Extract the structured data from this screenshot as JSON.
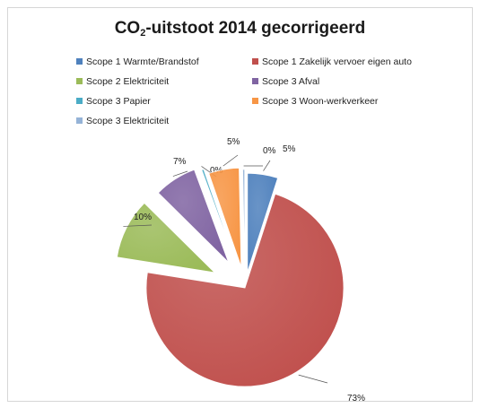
{
  "chart_data": {
    "type": "pie",
    "title_main": "CO",
    "title_sub": "2",
    "title_rest": "-uitstoot 2014 gecorrigeerd",
    "legend_position": "top",
    "exploded": true,
    "slices": [
      {
        "name": "Scope 1 Warmte/Brandstof",
        "value": 5,
        "label": "5%",
        "color": "#4F81BD"
      },
      {
        "name": "Scope 1 Zakelijk vervoer eigen auto",
        "value": 73,
        "label": "73%",
        "color": "#C0504D"
      },
      {
        "name": "Scope 2 Elektriciteit",
        "value": 10,
        "label": "10%",
        "color": "#9BBB59"
      },
      {
        "name": "Scope 3 Afval",
        "value": 7,
        "label": "7%",
        "color": "#8064A2"
      },
      {
        "name": "Scope 3 Papier",
        "value": 0,
        "label": "0%",
        "color": "#4BACC6"
      },
      {
        "name": "Scope 3 Woon-werkverkeer",
        "value": 5,
        "label": "5%",
        "color": "#F79646"
      },
      {
        "name": "Scope 3 Elektriciteit",
        "value": 0,
        "label": "0%",
        "color": "#95B3D7"
      }
    ]
  }
}
